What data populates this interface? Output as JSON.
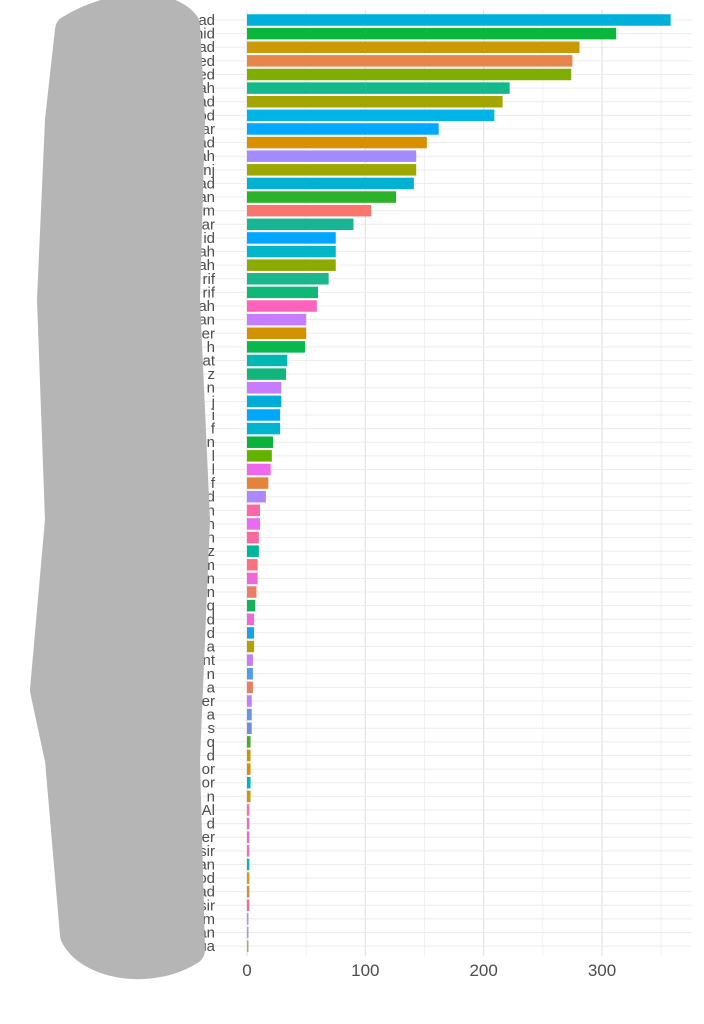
{
  "chart_data": {
    "type": "bar",
    "orientation": "horizontal",
    "title": "",
    "xlabel": "",
    "ylabel": "",
    "xlim": [
      0,
      375
    ],
    "xticks": [
      0,
      100,
      200,
      300
    ],
    "grid": true,
    "legend": "none",
    "categories": [
      "ad",
      "hid",
      "ad",
      "ed",
      "ed",
      "ah",
      "ad",
      "od",
      "ar",
      "ad",
      "ah",
      "anj",
      "ad",
      "an",
      "m",
      "ar",
      "id",
      "ah",
      "ah",
      "rif",
      "rif",
      "ah",
      "an",
      "er",
      "h",
      "at",
      "z",
      "n",
      "j",
      "i",
      "f",
      "n",
      "l",
      "l",
      "f",
      "d",
      "n",
      "n",
      "n",
      "z",
      "m",
      "an",
      "n",
      "q",
      "d",
      "d",
      "a",
      "nt",
      "n",
      "a",
      "er",
      "a",
      "s",
      "q",
      "d",
      "or",
      "or",
      "n",
      "Al",
      "d",
      "er",
      "sir",
      "an",
      "od",
      "ad",
      "sir",
      "m",
      "an",
      "ua"
    ],
    "values": [
      358,
      312,
      281,
      275,
      274,
      222,
      216,
      209,
      162,
      152,
      143,
      143,
      141,
      126,
      105,
      90,
      75,
      75,
      75,
      69,
      60,
      59,
      50,
      50,
      49,
      34,
      33,
      29,
      29,
      28,
      28,
      22,
      21,
      20,
      18,
      16,
      11,
      11,
      10,
      10,
      9,
      9,
      8,
      7,
      6,
      6,
      6,
      5,
      5,
      5,
      4,
      4,
      4,
      3,
      3,
      3,
      3,
      3,
      2,
      2,
      2,
      2,
      2,
      2,
      2,
      2,
      1,
      1,
      1
    ],
    "colors": [
      "#00B0DA",
      "#0CB53C",
      "#C99A06",
      "#E8854A",
      "#7FAE00",
      "#13B98A",
      "#A3A500",
      "#00B4E8",
      "#00A9FF",
      "#D89000",
      "#A58AFF",
      "#9CA700",
      "#00B1D2",
      "#2BB22A",
      "#F8766D",
      "#17B593",
      "#00A6FF",
      "#00B6C8",
      "#8DAA00",
      "#1BB68C",
      "#0FB877",
      "#FF62BC",
      "#C77CFF",
      "#D39200",
      "#08B74D",
      "#00B7B4",
      "#11B47A",
      "#C77CFF",
      "#00ADD9",
      "#00A7FF",
      "#00B4D0",
      "#0BB33C",
      "#64B200",
      "#EF67EB",
      "#E5823E",
      "#AE87FF",
      "#FF66A8",
      "#E76BF3",
      "#F8689E",
      "#00B699",
      "#FB727C",
      "#F067DC",
      "#EB7E66",
      "#18AF5A",
      "#EE6AD8",
      "#1AA2E6",
      "#B79F00",
      "#C57BFA",
      "#529CEB",
      "#E7805F",
      "#C77CFF",
      "#6D93E6",
      "#6F90E0",
      "#53A62E",
      "#C99405",
      "#D39200",
      "#00B4C3",
      "#C99A06",
      "#F36DB0",
      "#E86BCF",
      "#E96BD8",
      "#EC6AC9",
      "#00BAB2",
      "#D19A1F",
      "#D08E3A",
      "#EE6E91",
      "#B492E6",
      "#A89AE0",
      "#B1AC56"
    ]
  }
}
